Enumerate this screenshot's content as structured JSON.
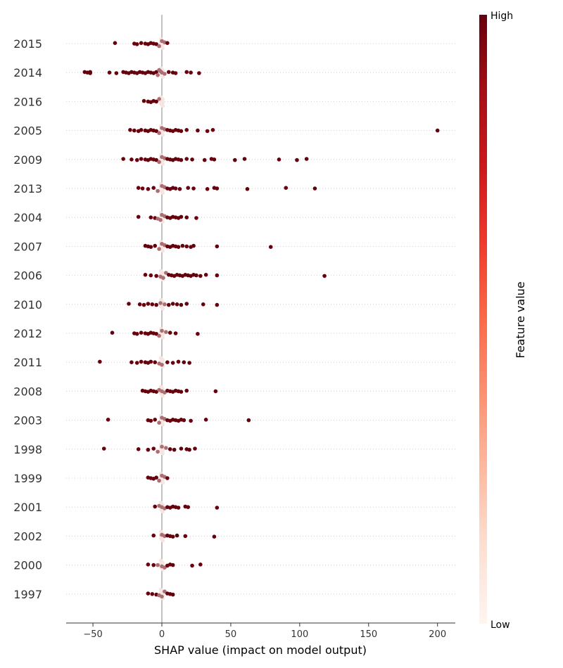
{
  "chart_data": {
    "type": "scatter",
    "xlabel": "SHAP value (impact on model output)",
    "xlim": [
      -70,
      213
    ],
    "xticks": [
      -50,
      0,
      50,
      100,
      150,
      200
    ],
    "xtick_labels": [
      "−50",
      "0",
      "50",
      "100",
      "150",
      "200"
    ],
    "colorbar": {
      "label": "Feature value",
      "high": "High",
      "low": "Low",
      "cmap": "Reds"
    },
    "colors": {
      "high": "#67000d",
      "mid": "#ef3b2c",
      "low": "#fff5f0",
      "axis": "#333333",
      "zero_line": "#999999",
      "grid": "#cccccc"
    },
    "grid": "horizontal dotted",
    "features": [
      {
        "name": "2015",
        "points": [
          -34,
          -20,
          -18,
          -15,
          -12,
          -10,
          -8,
          -6,
          -4,
          -2,
          0,
          2,
          4
        ]
      },
      {
        "name": "2014",
        "points": [
          -56,
          -54,
          -52,
          -52,
          -38,
          -33,
          -28,
          -26,
          -24,
          -22,
          -20,
          -18,
          -16,
          -14,
          -12,
          -10,
          -8,
          -6,
          -4,
          -3,
          -2,
          -1,
          0,
          2,
          5,
          8,
          10,
          18,
          21,
          27
        ]
      },
      {
        "name": "2016",
        "points": [
          -13,
          -10,
          -8,
          -6,
          -4,
          -2
        ]
      },
      {
        "name": "2005",
        "points": [
          -23,
          -20,
          -17,
          -15,
          -12,
          -10,
          -8,
          -6,
          -4,
          -2,
          0,
          2,
          4,
          6,
          8,
          10,
          12,
          14,
          18,
          26,
          33,
          37,
          200
        ]
      },
      {
        "name": "2009",
        "points": [
          -28,
          -22,
          -18,
          -15,
          -12,
          -10,
          -8,
          -6,
          -4,
          -2,
          0,
          2,
          4,
          6,
          8,
          10,
          12,
          14,
          18,
          22,
          31,
          36,
          38,
          53,
          60,
          85,
          98,
          105
        ]
      },
      {
        "name": "2013",
        "points": [
          -17,
          -14,
          -10,
          -6,
          -3,
          0,
          2,
          4,
          6,
          8,
          10,
          13,
          19,
          23,
          33,
          38,
          40,
          62,
          90,
          111
        ]
      },
      {
        "name": "2004",
        "points": [
          -17,
          -8,
          -5,
          -3,
          -1,
          0,
          2,
          4,
          6,
          8,
          10,
          12,
          14,
          18,
          25
        ]
      },
      {
        "name": "2007",
        "points": [
          -12,
          -10,
          -8,
          -5,
          -2,
          0,
          2,
          4,
          6,
          8,
          10,
          12,
          15,
          18,
          21,
          23,
          40,
          79
        ]
      },
      {
        "name": "2006",
        "points": [
          -12,
          -8,
          -4,
          -1,
          1,
          3,
          5,
          7,
          9,
          11,
          13,
          15,
          17,
          19,
          21,
          23,
          25,
          28,
          32,
          40,
          118
        ]
      },
      {
        "name": "2010",
        "points": [
          -24,
          -16,
          -13,
          -10,
          -7,
          -4,
          -1,
          2,
          5,
          8,
          11,
          14,
          18,
          30,
          40
        ]
      },
      {
        "name": "2012",
        "points": [
          -36,
          -20,
          -18,
          -15,
          -12,
          -10,
          -8,
          -6,
          -4,
          -2,
          0,
          3,
          6,
          10,
          26
        ]
      },
      {
        "name": "2011",
        "points": [
          -45,
          -22,
          -18,
          -15,
          -12,
          -10,
          -8,
          -5,
          -2,
          0,
          4,
          8,
          12,
          16,
          20
        ]
      },
      {
        "name": "2008",
        "points": [
          -14,
          -12,
          -10,
          -8,
          -6,
          -4,
          -2,
          0,
          2,
          4,
          6,
          8,
          10,
          12,
          14,
          18,
          39
        ]
      },
      {
        "name": "2003",
        "points": [
          -39,
          -10,
          -8,
          -5,
          -2,
          0,
          2,
          4,
          6,
          8,
          10,
          12,
          14,
          16,
          21,
          32,
          63
        ]
      },
      {
        "name": "1998",
        "points": [
          -42,
          -17,
          -10,
          -6,
          -3,
          0,
          3,
          6,
          9,
          14,
          18,
          20,
          24
        ]
      },
      {
        "name": "1999",
        "points": [
          -10,
          -8,
          -6,
          -4,
          -2,
          0,
          2,
          4
        ]
      },
      {
        "name": "2001",
        "points": [
          -5,
          -2,
          0,
          2,
          4,
          6,
          8,
          10,
          12,
          17,
          19,
          40
        ]
      },
      {
        "name": "2002",
        "points": [
          -6,
          0,
          2,
          4,
          6,
          8,
          11,
          17,
          38
        ]
      },
      {
        "name": "2000",
        "points": [
          -10,
          -6,
          -3,
          0,
          2,
          4,
          6,
          8,
          22,
          28
        ]
      },
      {
        "name": "1997",
        "points": [
          -10,
          -7,
          -4,
          -2,
          0,
          2,
          4,
          6,
          8
        ]
      }
    ]
  }
}
